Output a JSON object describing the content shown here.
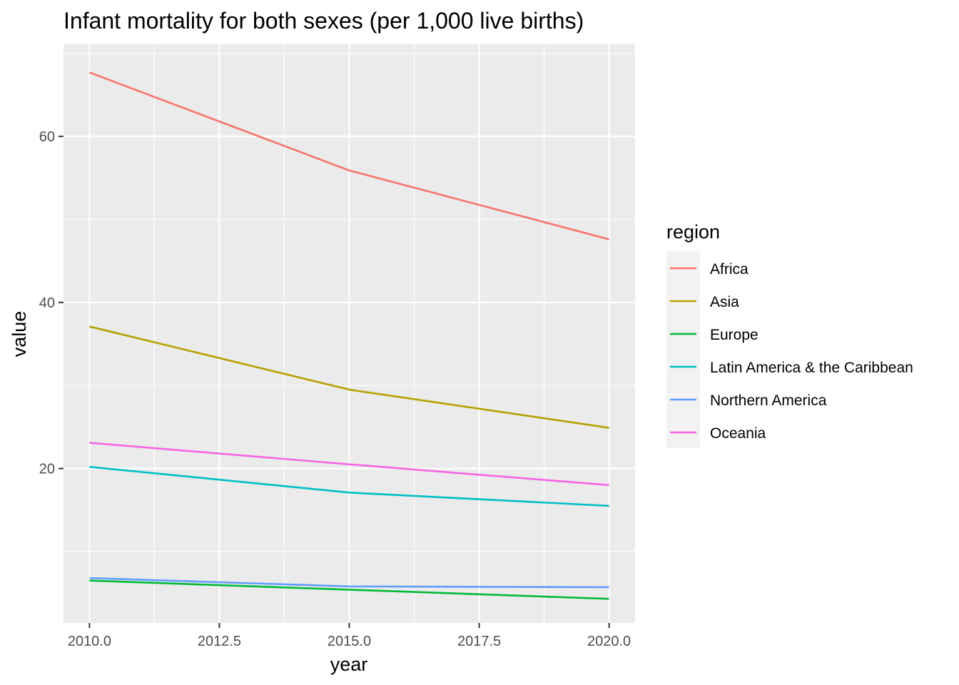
{
  "chart_data": {
    "type": "line",
    "title": "Infant mortality for both sexes (per 1,000 live births)",
    "xlabel": "year",
    "ylabel": "value",
    "xlim": [
      2009.5,
      2020.5
    ],
    "ylim": [
      1.4,
      71.1
    ],
    "x_ticks": [
      2010.0,
      2012.5,
      2015.0,
      2017.5,
      2020.0
    ],
    "x_tick_labels": [
      "2010.0",
      "2012.5",
      "2015.0",
      "2017.5",
      "2020.0"
    ],
    "x_minor_ticks": [
      2011.25,
      2013.75,
      2016.25,
      2018.75
    ],
    "y_ticks": [
      20,
      40,
      60
    ],
    "y_tick_labels": [
      "20",
      "40",
      "60"
    ],
    "y_minor_ticks": [
      10,
      30,
      50,
      70
    ],
    "grid": true,
    "legend_title": "region",
    "legend_position": "right",
    "x": [
      2010,
      2015,
      2020
    ],
    "series": [
      {
        "name": "Africa",
        "color": "#F8766D",
        "values": [
          67.7,
          55.9,
          47.6
        ]
      },
      {
        "name": "Asia",
        "color": "#B79F00",
        "values": [
          37.1,
          29.5,
          24.9
        ]
      },
      {
        "name": "Europe",
        "color": "#00BA38",
        "values": [
          6.5,
          5.4,
          4.3
        ]
      },
      {
        "name": "Latin America & the Caribbean",
        "color": "#00BFC4",
        "values": [
          20.2,
          17.1,
          15.5
        ]
      },
      {
        "name": "Northern America",
        "color": "#619CFF",
        "values": [
          6.8,
          5.8,
          5.7
        ]
      },
      {
        "name": "Oceania",
        "color": "#F564E3",
        "values": [
          23.1,
          20.5,
          18.0
        ]
      }
    ]
  }
}
